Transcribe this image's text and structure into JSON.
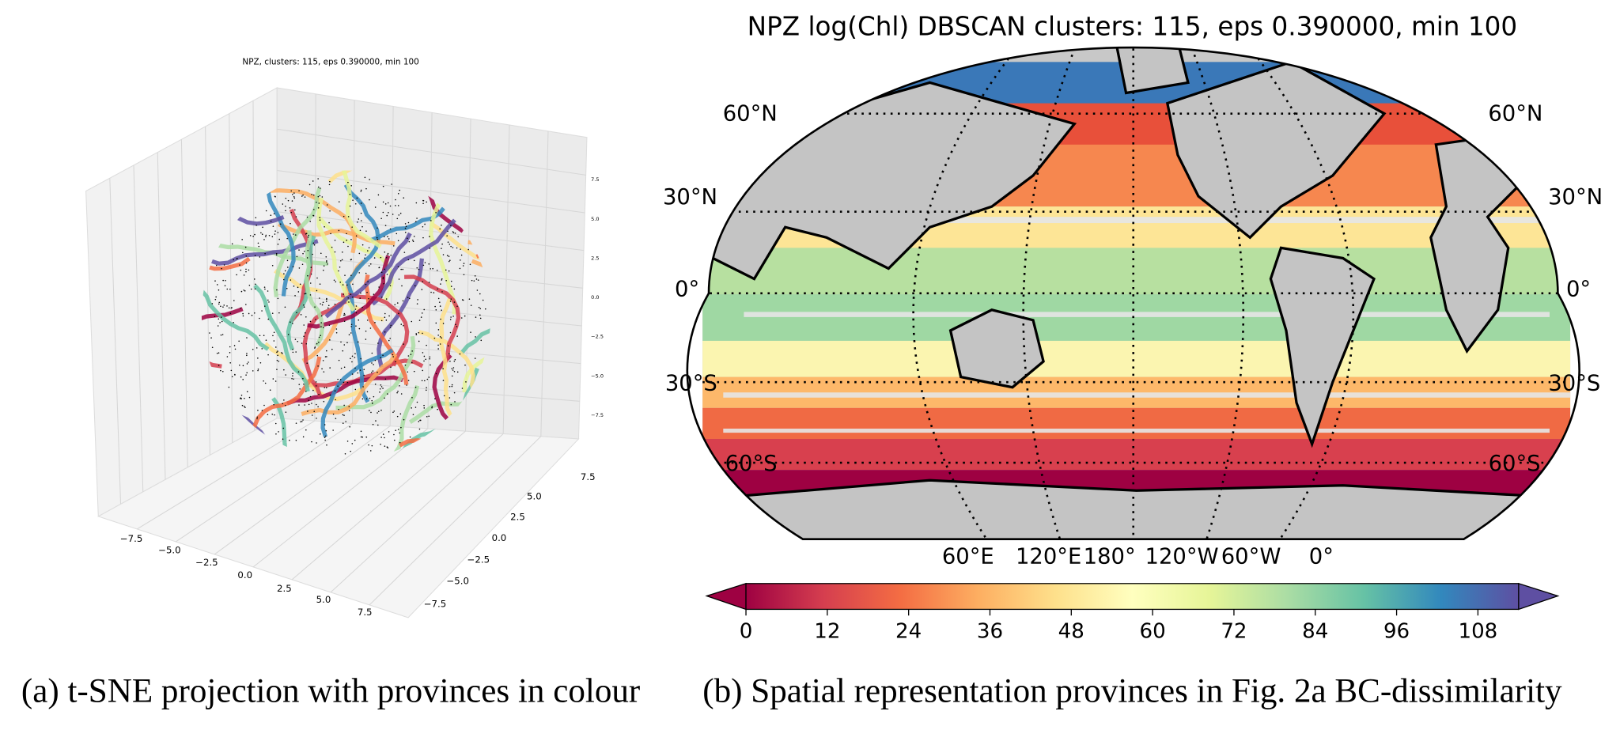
{
  "panel_a": {
    "title": "NPZ, clusters: 115, eps 0.390000, min 100",
    "x_tick_labels": [
      "−7.5",
      "−5.0",
      "−2.5",
      "0.0",
      "2.5",
      "5.0",
      "7.5"
    ],
    "y_tick_labels": [
      "7.5",
      "5.0",
      "2.5",
      "0.0",
      "−2.5",
      "−5.0",
      "−7.5"
    ],
    "z_tick_labels": [
      "7.5",
      "5.0",
      "2.5",
      "0.0",
      "−2.5",
      "−5.0",
      "−7.5"
    ],
    "caption": "(a) t-SNE projection with provinces in colour"
  },
  "panel_b": {
    "title": "NPZ log(Chl) DBSCAN clusters: 115, eps 0.390000, min 100",
    "lat_labels": [
      "60°N",
      "30°N",
      "0°",
      "30°S",
      "60°S"
    ],
    "lon_labels": [
      "60°E",
      "120°E",
      "180°",
      "120°W",
      "60°W",
      "0°"
    ],
    "colorbar": {
      "lim": [
        0,
        114
      ],
      "ticks": [
        0,
        12,
        24,
        36,
        48,
        60,
        72,
        84,
        96,
        108
      ]
    },
    "caption": "(b) Spatial representation provinces in Fig. 2a BC-dissimilarity"
  }
}
